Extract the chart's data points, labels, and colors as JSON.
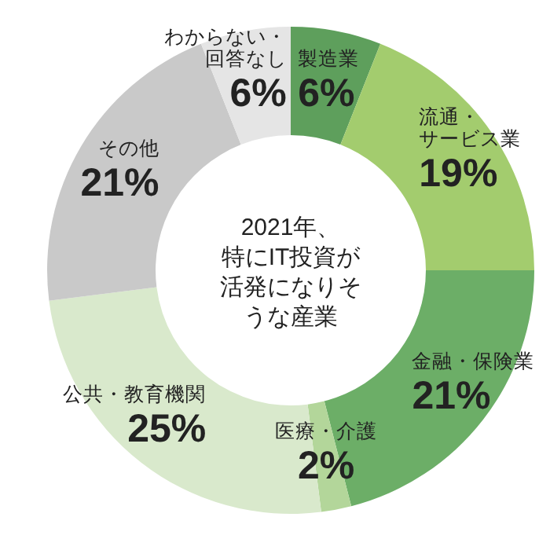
{
  "chart_data": {
    "type": "donut",
    "title": "2021年、特にIT投資が活発になりそうな産業",
    "categories": [
      "製造業",
      "流通・サービス業",
      "金融・保険業",
      "医療・介護",
      "公共・教育機関",
      "その他",
      "わからない・回答なし"
    ],
    "values": [
      6,
      19,
      21,
      2,
      25,
      21,
      6
    ],
    "colors": [
      "#5e9f5c",
      "#a3cc6e",
      "#6cae67",
      "#b3d69a",
      "#d9e9cc",
      "#c9c9c9",
      "#e5e5e5"
    ],
    "value_labels": [
      "6%",
      "19%",
      "21%",
      "2%",
      "25%",
      "21%",
      "6%"
    ]
  }
}
